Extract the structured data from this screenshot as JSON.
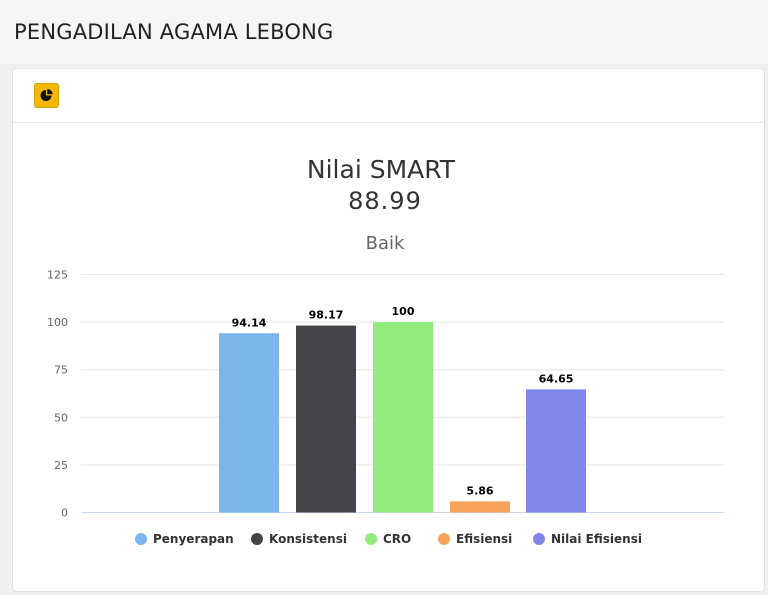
{
  "page": {
    "title": "PENGADILAN AGAMA LEBONG"
  },
  "card": {
    "icon": "pie-chart-icon",
    "accent": "#f5b800"
  },
  "chart_data": {
    "type": "bar",
    "title": "Nilai SMART",
    "value_text": "88.99",
    "subtitle": "Baik",
    "categories": [
      "Penyerapan",
      "Konsistensi",
      "CRO",
      "Efisiensi",
      "Nilai Efisiensi"
    ],
    "values": [
      94.14,
      98.17,
      100,
      5.86,
      64.65
    ],
    "value_labels": [
      "94.14",
      "98.17",
      "100",
      "5.86",
      "64.65"
    ],
    "colors": [
      "#7cb4ec",
      "#434348",
      "#90ed7d",
      "#f7a35c",
      "#8085e9"
    ],
    "ylim": [
      0,
      125
    ],
    "yticks": [
      0,
      25,
      50,
      75,
      100,
      125
    ],
    "grid": true,
    "legend": "bottom"
  }
}
